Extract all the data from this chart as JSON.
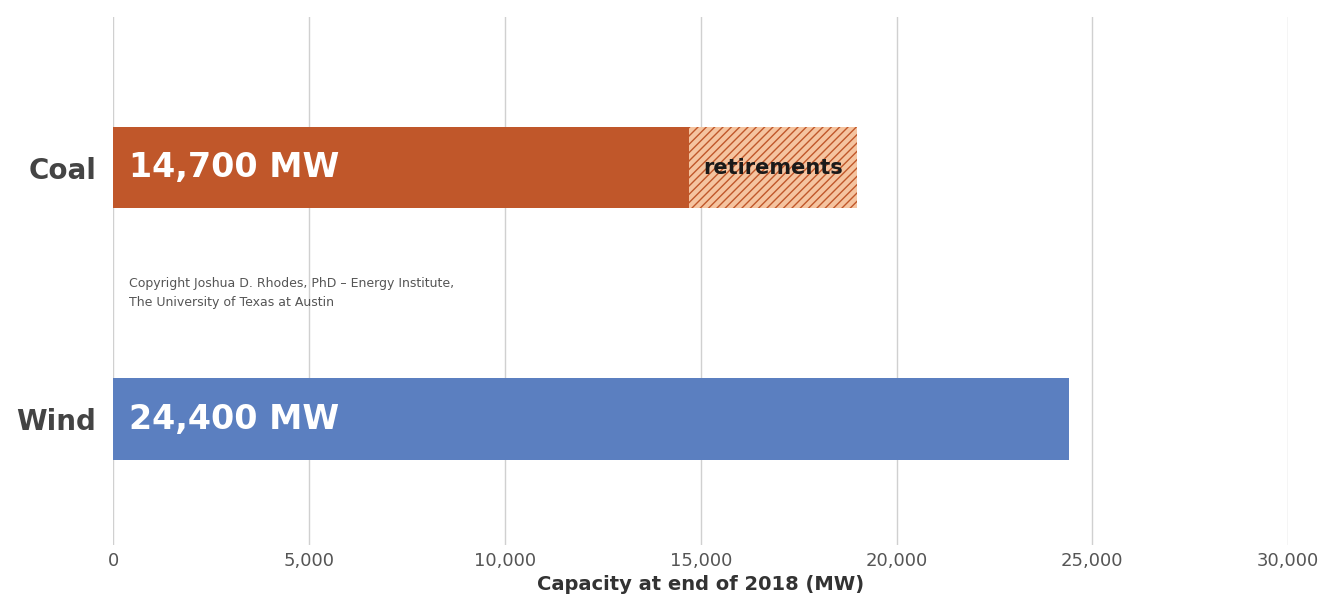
{
  "categories": [
    "Wind",
    "Coal"
  ],
  "coal_solid_value": 14700,
  "coal_hatched_value": 19000,
  "wind_value": 24400,
  "coal_color": "#C0572A",
  "coal_hatch_facecolor": "#F5C4A0",
  "coal_hatch_edgecolor": "#C0572A",
  "wind_color": "#5B7FC0",
  "coal_label": "14,700 MW",
  "wind_label": "24,400 MW",
  "retirement_label": "retirements",
  "xlabel": "Capacity at end of 2018 (MW)",
  "xlim": [
    0,
    30000
  ],
  "xticks": [
    0,
    5000,
    10000,
    15000,
    20000,
    25000,
    30000
  ],
  "xtick_labels": [
    "0",
    "5,000",
    "10,000",
    "15,000",
    "20,000",
    "25,000",
    "30,000"
  ],
  "copyright_text": "Copyright Joshua D. Rhodes, PhD – Energy Institute,\nThe University of Texas at Austin",
  "background_color": "#ffffff",
  "grid_color": "#d0d0d0",
  "bar_height": 0.65,
  "label_fontsize": 24,
  "tick_fontsize": 13,
  "xlabel_fontsize": 14,
  "ylabel_fontsize": 20,
  "copyright_fontsize": 9,
  "retirement_fontsize": 15,
  "y_coal": 3,
  "y_wind": 1,
  "ylim": [
    0,
    4.2
  ]
}
